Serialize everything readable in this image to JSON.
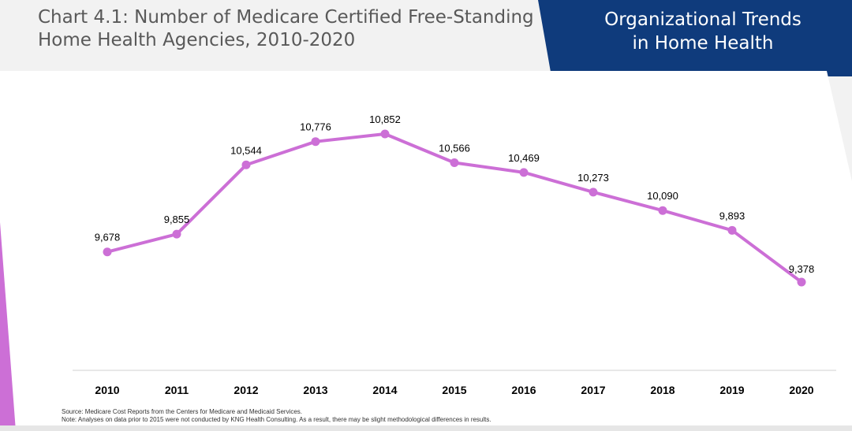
{
  "header": {
    "title_lines": [
      "Chart 4.1: Number of Medicare Certified Free-Standing",
      "Home Health Agencies, 2010-2020"
    ],
    "banner_lines": [
      "Organizational Trends",
      "in Home Health"
    ]
  },
  "colors": {
    "line": "#cc6fd6",
    "banner": "#0f3b7c",
    "axis": "#d9d9d9"
  },
  "chart_data": {
    "type": "line",
    "title": "Chart 4.1: Number of Medicare Certified Free-Standing Home Health Agencies, 2010-2020",
    "xlabel": "",
    "ylabel": "",
    "categories": [
      "2010",
      "2011",
      "2012",
      "2013",
      "2014",
      "2015",
      "2016",
      "2017",
      "2018",
      "2019",
      "2020"
    ],
    "series": [
      {
        "values": [
          9678,
          9855,
          10544,
          10776,
          10852,
          10566,
          10469,
          10273,
          10090,
          9893,
          9378
        ],
        "labels": [
          "9,678",
          "9,855",
          "10,544",
          "10,776",
          "10,852",
          "10,566",
          "10,469",
          "10,273",
          "10,090",
          "9,893",
          "9,378"
        ]
      }
    ],
    "grid": false,
    "legend": "none",
    "markers": true,
    "data_labels": true
  },
  "notes": {
    "source": "Source: Medicare Cost Reports from the Centers for Medicare and Medicaid Services.",
    "note": "Note: Analyses on data prior to 2015 were not conducted by KNG Health Consulting. As a result, there may be slight methodological differences in results."
  }
}
